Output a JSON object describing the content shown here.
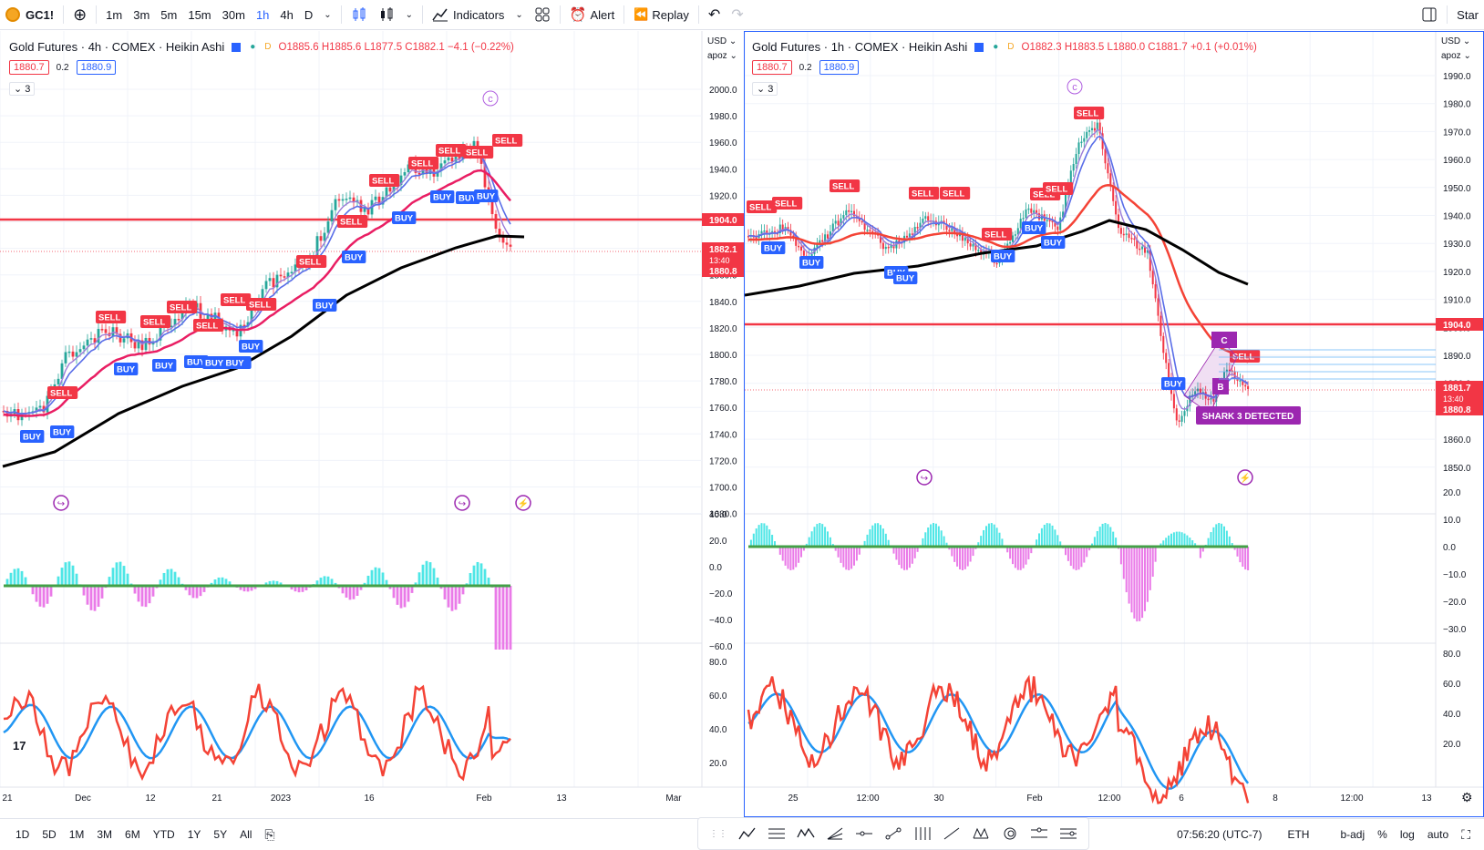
{
  "toolbar": {
    "symbol": "GC1!",
    "intervals": [
      "1m",
      "3m",
      "5m",
      "15m",
      "30m",
      "1h",
      "4h",
      "D"
    ],
    "active_interval": "1h",
    "indicators": "Indicators",
    "alert": "Alert",
    "replay": "Replay",
    "start": "Star"
  },
  "left_chart": {
    "title": "Gold Futures · 4h · COMEX · Heikin Ashi",
    "ohlc": "O1885.6  H1885.6  L1877.5  C1882.1  −4.1 (−0.22%)",
    "bid": "1880.7",
    "spread": "0.2",
    "ask": "1880.9",
    "collapse_count": "3",
    "currency": "USD",
    "currency_sub": "apoz",
    "price_ticks": [
      "2000.0",
      "1980.0",
      "1960.0",
      "1940.0",
      "1920.0",
      "1900.0",
      "1880.0",
      "1860.0",
      "1840.0",
      "1820.0",
      "1800.0",
      "1780.0",
      "1760.0",
      "1740.0",
      "1720.0",
      "1700.0",
      "1680.0"
    ],
    "level_label": "1904.0",
    "last_price": "1882.1",
    "last_timer": "13:40",
    "last_low": "1880.8",
    "osc_ticks": [
      "40.0",
      "20.0",
      "0.0",
      "−20.0",
      "−40.0",
      "−60.0"
    ],
    "rsi_ticks": [
      "80.0",
      "60.0",
      "40.0",
      "20.0"
    ],
    "x_ticks": [
      "21",
      "Dec",
      "12",
      "21",
      "2023",
      "16",
      "Feb",
      "13",
      "Mar"
    ],
    "wave_label": "c",
    "buy_labels": [
      "BUY",
      "BUY",
      "BUY",
      "BUY",
      "BUY",
      "BUY BUY",
      "BUY",
      "BUY",
      "BUY",
      "BUY",
      "BUY"
    ],
    "sell_labels": [
      "SELL",
      "SELL",
      "SELL",
      "SELL",
      "SELL",
      "SELL",
      "SELL",
      "SELL",
      "SELL",
      "SELL",
      "SELL",
      "SELL",
      "SELL",
      "SELL"
    ]
  },
  "right_chart": {
    "title": "Gold Futures · 1h · COMEX · Heikin Ashi",
    "ohlc": "O1882.3  H1883.5  L1880.0  C1881.7  +0.1 (+0.01%)",
    "bid": "1880.7",
    "spread": "0.2",
    "ask": "1880.9",
    "collapse_count": "3",
    "currency": "USD",
    "currency_sub": "apoz",
    "price_ticks": [
      "1990.0",
      "1980.0",
      "1970.0",
      "1960.0",
      "1950.0",
      "1940.0",
      "1930.0",
      "1920.0",
      "1910.0",
      "1900.0",
      "1890.0",
      "1880.0",
      "1870.0",
      "1860.0",
      "1850.0"
    ],
    "level_label": "1904.0",
    "last_price": "1881.7",
    "last_timer": "13:40",
    "last_low": "1880.8",
    "osc_ticks": [
      "20.0",
      "10.0",
      "0.0",
      "−10.0",
      "−20.0",
      "−30.0"
    ],
    "rsi_ticks": [
      "80.0",
      "60.0",
      "40.0",
      "20.0"
    ],
    "x_ticks": [
      "25",
      "12:00",
      "30",
      "Feb",
      "12:00",
      "6",
      "8",
      "12:00",
      "13"
    ],
    "wave_label": "c",
    "pattern_c": "C",
    "pattern_b": "B",
    "shark_label": "SHARK 3 DETECTED"
  },
  "bottom": {
    "ranges": [
      "1D",
      "5D",
      "1M",
      "3M",
      "6M",
      "YTD",
      "1Y",
      "5Y",
      "All"
    ],
    "time": "07:56:20 (UTC-7)",
    "session": "ETH",
    "badj": "b-adj",
    "pct": "%",
    "log": "log",
    "auto": "auto"
  },
  "colors": {
    "red": "#f23645",
    "blue": "#2962ff",
    "teal": "#26a69a",
    "cyan": "#4ee6e6",
    "magenta": "#e040e0",
    "black": "#000000",
    "pink": "#e91e63",
    "purple": "#9c27b0"
  }
}
